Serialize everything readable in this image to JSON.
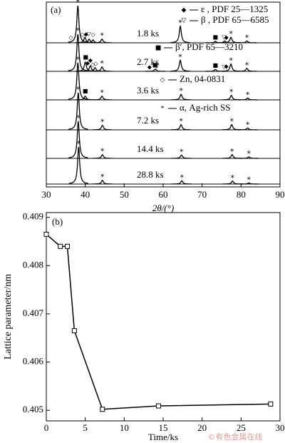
{
  "chart_data": [
    {
      "type": "xrd",
      "panel_label": "(a)",
      "xlabel": "2θ/(°)",
      "xlim": [
        30,
        90
      ],
      "xticks": [
        30,
        40,
        50,
        60,
        70,
        80,
        90
      ],
      "legend": [
        {
          "symbol": "◆",
          "label": "ε , PDF 25—1325"
        },
        {
          "symbol": "▽",
          "label": "β , PDF 65—6585"
        },
        {
          "symbol": "■",
          "label": "β′, PDF 65—3210"
        },
        {
          "symbol": "◇",
          "label": "Zn, 04-0831"
        },
        {
          "symbol": "*",
          "label": "α, Ag-rich SS"
        }
      ],
      "patterns": [
        {
          "name": "1.8 ks",
          "peaks_x": [
            38.1,
            39.9,
            41,
            42,
            44.3,
            64.4,
            73.4,
            75.8,
            77.4,
            81.5
          ],
          "peaks_intensity": [
            100,
            15,
            10,
            8,
            10,
            45,
            4,
            5,
            15,
            5
          ],
          "marker_phase": [
            3,
            4,
            3,
            0,
            1,
            3,
            4,
            4,
            2,
            1,
            0,
            4,
            4
          ],
          "marker_x": [
            36.3,
            38.1,
            39.3,
            40.2,
            40.9,
            42,
            44.3,
            64.4,
            73.4,
            75.6,
            76.2,
            77.4,
            81.5
          ]
        },
        {
          "name": "2.7 ks",
          "peaks_x": [
            38.1,
            40,
            41.3,
            42.5,
            44.3,
            58,
            64.4,
            73.4,
            77.4,
            81.5
          ],
          "peaks_intensity": [
            100,
            25,
            15,
            10,
            12,
            6,
            30,
            5,
            20,
            8
          ],
          "marker_phase": [
            4,
            2,
            0,
            0,
            3,
            3,
            4,
            0,
            2,
            1,
            4,
            2,
            1,
            0,
            4,
            4
          ],
          "marker_x": [
            38.1,
            40.1,
            40.6,
            41.3,
            41.9,
            42.7,
            44.3,
            56.5,
            57.9,
            58.4,
            64.4,
            73.4,
            75.6,
            76.2,
            77.4,
            81.5
          ]
        },
        {
          "name": "3.6 ks",
          "peaks_x": [
            38.1,
            40,
            44.3,
            64.6,
            77.5,
            81.7
          ],
          "peaks_intensity": [
            100,
            10,
            10,
            15,
            12,
            5
          ],
          "marker_phase": [
            4,
            2,
            4,
            4,
            4,
            4
          ],
          "marker_x": [
            38.1,
            40,
            44.3,
            64.6,
            77.5,
            81.7
          ]
        },
        {
          "name": "7.2 ks",
          "peaks_x": [
            38.2,
            44.4,
            64.6,
            77.6,
            81.7
          ],
          "peaks_intensity": [
            100,
            12,
            14,
            14,
            5
          ],
          "marker_phase": [
            4,
            4,
            4,
            4,
            4
          ],
          "marker_x": [
            38.2,
            44.4,
            64.6,
            77.6,
            81.7
          ]
        },
        {
          "name": "14.4 ks",
          "peaks_x": [
            38.2,
            44.4,
            64.7,
            77.7,
            82
          ],
          "peaks_intensity": [
            100,
            10,
            9,
            10,
            4
          ],
          "marker_phase": [
            4,
            4,
            4,
            4,
            4
          ],
          "marker_x": [
            38.2,
            44.4,
            64.7,
            77.7,
            82
          ]
        },
        {
          "name": "28.8 ks",
          "peaks_x": [
            38.3,
            44.4,
            64.8,
            77.8,
            82
          ],
          "peaks_intensity": [
            100,
            10,
            9,
            8,
            3
          ],
          "marker_phase": [
            4,
            4,
            4,
            4,
            4
          ],
          "marker_x": [
            38.3,
            44.4,
            64.8,
            77.8,
            82
          ]
        }
      ]
    },
    {
      "type": "line",
      "panel_label": "(b)",
      "xlabel": "Time/ks",
      "ylabel": "Lattice parameter/nm",
      "x": [
        0,
        1.8,
        2.7,
        3.6,
        7.2,
        14.4,
        28.8
      ],
      "values": [
        0.40865,
        0.4084,
        0.4084,
        0.40665,
        0.40502,
        0.40509,
        0.40513
      ],
      "xlim": [
        0,
        30
      ],
      "xticks": [
        0,
        5,
        10,
        15,
        20,
        25,
        30
      ],
      "ylim": [
        0.40478,
        0.4091
      ],
      "yticks": [
        0.405,
        0.406,
        0.407,
        0.408,
        0.409
      ],
      "color": "#000000"
    }
  ],
  "watermark": "©有色金属在线"
}
